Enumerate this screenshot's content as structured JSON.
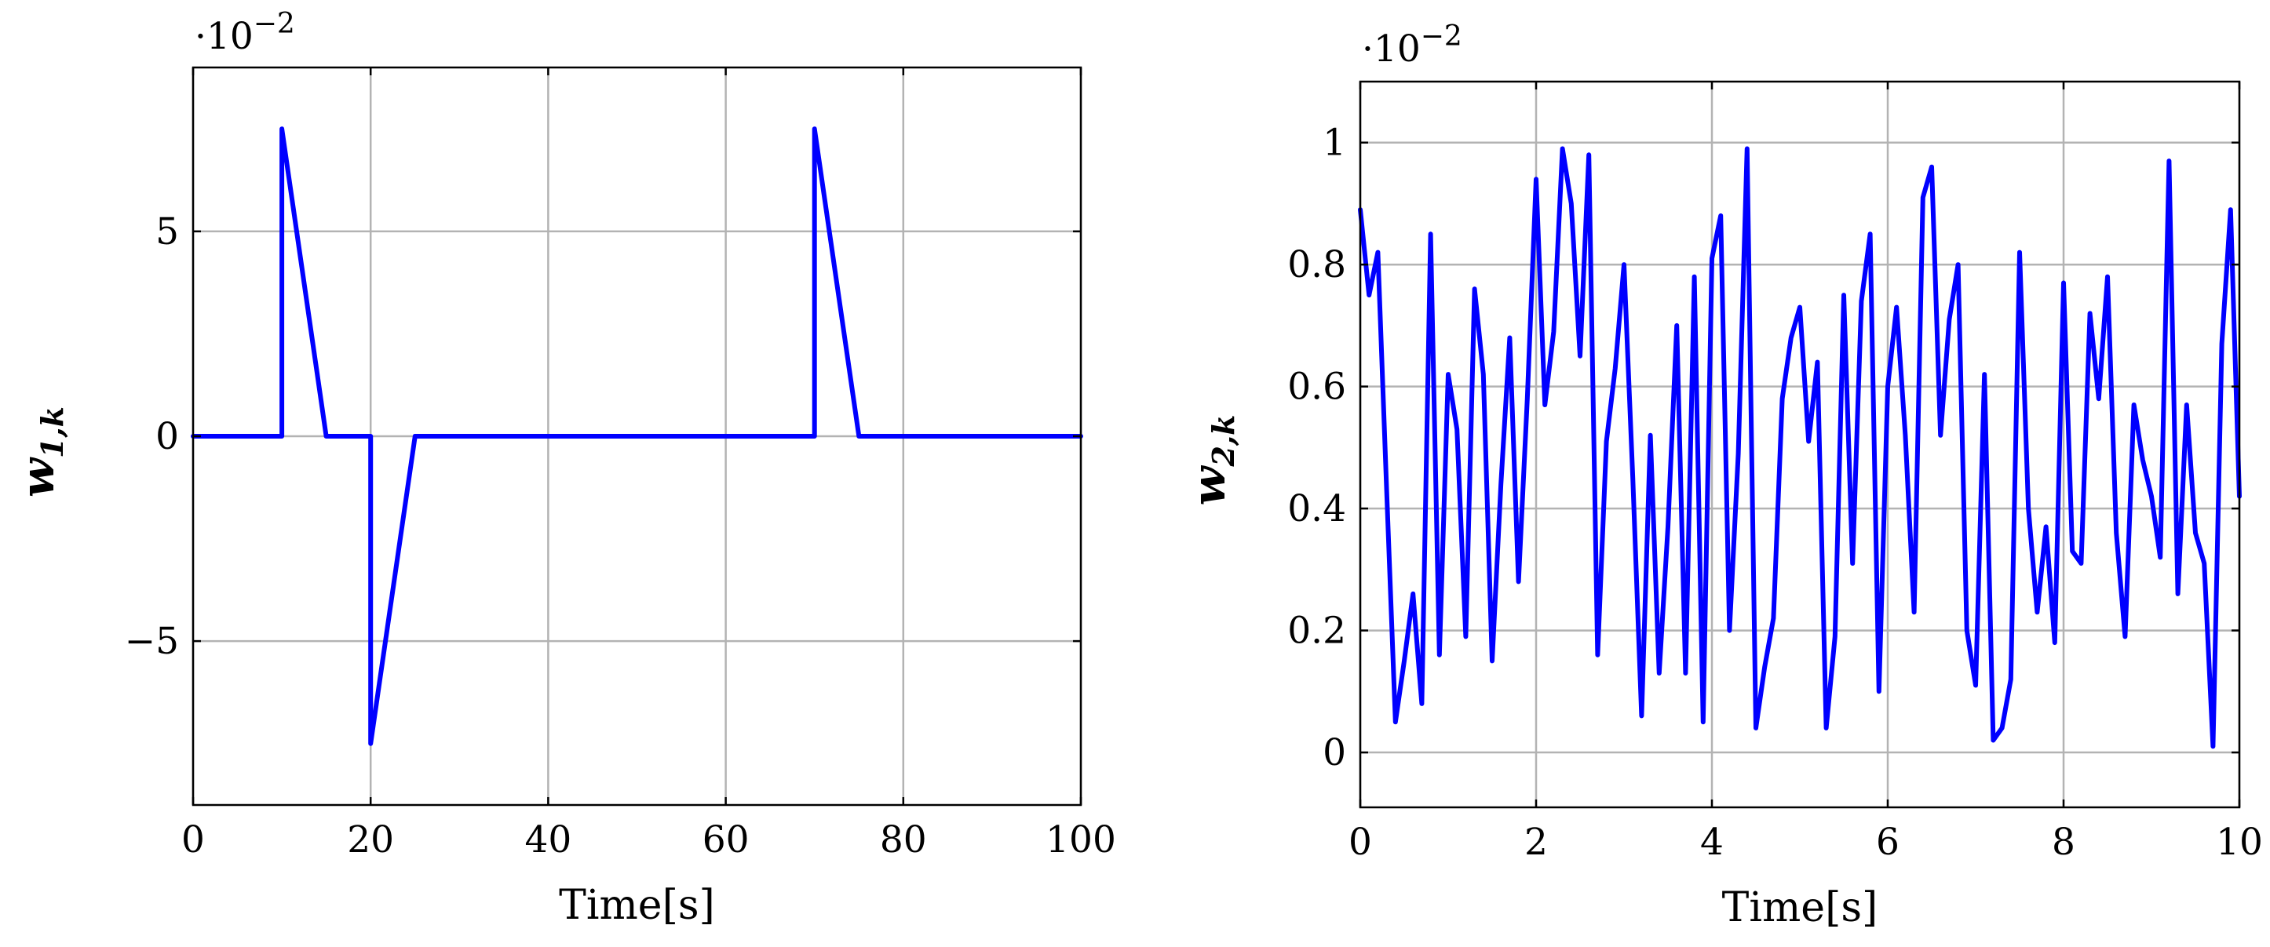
{
  "colors": {
    "series": "#0000ff",
    "grid": "#b3b3b3",
    "axis": "#000000"
  },
  "chart_data": [
    {
      "type": "line",
      "xlabel": "Time[s]",
      "ylabel": "w",
      "ylabel_subscript": "1,k",
      "scale_label": "·10",
      "scale_exponent": "−2",
      "xlim": [
        0,
        100
      ],
      "ylim": [
        -9,
        9
      ],
      "xticks": [
        0,
        20,
        40,
        60,
        80,
        100
      ],
      "xtick_labels": [
        "0",
        "20",
        "40",
        "60",
        "80",
        "100"
      ],
      "yticks": [
        -5,
        0,
        5
      ],
      "ytick_labels": [
        "−5",
        "0",
        "5"
      ],
      "grid": true,
      "series": [
        {
          "x": [
            0,
            10,
            10,
            15,
            20,
            20,
            25,
            70,
            70,
            75,
            100
          ],
          "y": [
            0,
            0,
            7.5,
            0,
            0,
            -7.5,
            0,
            0,
            7.5,
            0,
            0
          ]
        }
      ]
    },
    {
      "type": "line",
      "xlabel": "Time[s]",
      "ylabel": "w",
      "ylabel_subscript": "2,k",
      "scale_label": "·10",
      "scale_exponent": "−2",
      "xlim": [
        0,
        10
      ],
      "ylim": [
        -0.09,
        1.1
      ],
      "xticks": [
        0,
        2,
        4,
        6,
        8,
        10
      ],
      "xtick_labels": [
        "0",
        "2",
        "4",
        "6",
        "8",
        "10"
      ],
      "yticks": [
        0,
        0.2,
        0.4,
        0.6,
        0.8,
        1
      ],
      "ytick_labels": [
        "0",
        "0.2",
        "0.4",
        "0.6",
        "0.8",
        "1"
      ],
      "grid": true,
      "series": [
        {
          "x": [
            0,
            0.1,
            0.2,
            0.3,
            0.4,
            0.5,
            0.6,
            0.7,
            0.8,
            0.9,
            1.0,
            1.1,
            1.2,
            1.3,
            1.4,
            1.5,
            1.6,
            1.7,
            1.8,
            1.9,
            2.0,
            2.1,
            2.2,
            2.3,
            2.4,
            2.5,
            2.6,
            2.7,
            2.8,
            2.9,
            3.0,
            3.1,
            3.2,
            3.3,
            3.4,
            3.5,
            3.6,
            3.7,
            3.8,
            3.9,
            4.0,
            4.1,
            4.2,
            4.3,
            4.4,
            4.5,
            4.6,
            4.7,
            4.8,
            4.9,
            5.0,
            5.1,
            5.2,
            5.3,
            5.4,
            5.5,
            5.6,
            5.7,
            5.8,
            5.9,
            6.0,
            6.1,
            6.2,
            6.3,
            6.4,
            6.5,
            6.6,
            6.7,
            6.8,
            6.9,
            7.0,
            7.1,
            7.2,
            7.3,
            7.4,
            7.5,
            7.6,
            7.7,
            7.8,
            7.9,
            8.0,
            8.1,
            8.2,
            8.3,
            8.4,
            8.5,
            8.6,
            8.7,
            8.8,
            8.9,
            9.0,
            9.1,
            9.2,
            9.3,
            9.4,
            9.5,
            9.6,
            9.7,
            9.8,
            9.9,
            10.0
          ],
          "y": [
            0.89,
            0.75,
            0.82,
            0.43,
            0.05,
            0.15,
            0.26,
            0.08,
            0.85,
            0.16,
            0.62,
            0.53,
            0.19,
            0.76,
            0.62,
            0.15,
            0.44,
            0.68,
            0.28,
            0.58,
            0.94,
            0.57,
            0.69,
            0.99,
            0.9,
            0.65,
            0.98,
            0.16,
            0.51,
            0.63,
            0.8,
            0.45,
            0.06,
            0.52,
            0.13,
            0.37,
            0.7,
            0.13,
            0.78,
            0.05,
            0.81,
            0.88,
            0.2,
            0.49,
            0.99,
            0.04,
            0.14,
            0.22,
            0.58,
            0.68,
            0.73,
            0.51,
            0.64,
            0.04,
            0.19,
            0.75,
            0.31,
            0.74,
            0.85,
            0.1,
            0.6,
            0.73,
            0.52,
            0.23,
            0.91,
            0.96,
            0.52,
            0.71,
            0.8,
            0.2,
            0.11,
            0.62,
            0.02,
            0.04,
            0.12,
            0.82,
            0.4,
            0.23,
            0.37,
            0.18,
            0.77,
            0.33,
            0.31,
            0.72,
            0.58,
            0.78,
            0.36,
            0.19,
            0.57,
            0.48,
            0.42,
            0.32,
            0.97,
            0.26,
            0.57,
            0.36,
            0.31,
            0.01,
            0.67,
            0.89,
            0.42
          ]
        }
      ]
    }
  ]
}
